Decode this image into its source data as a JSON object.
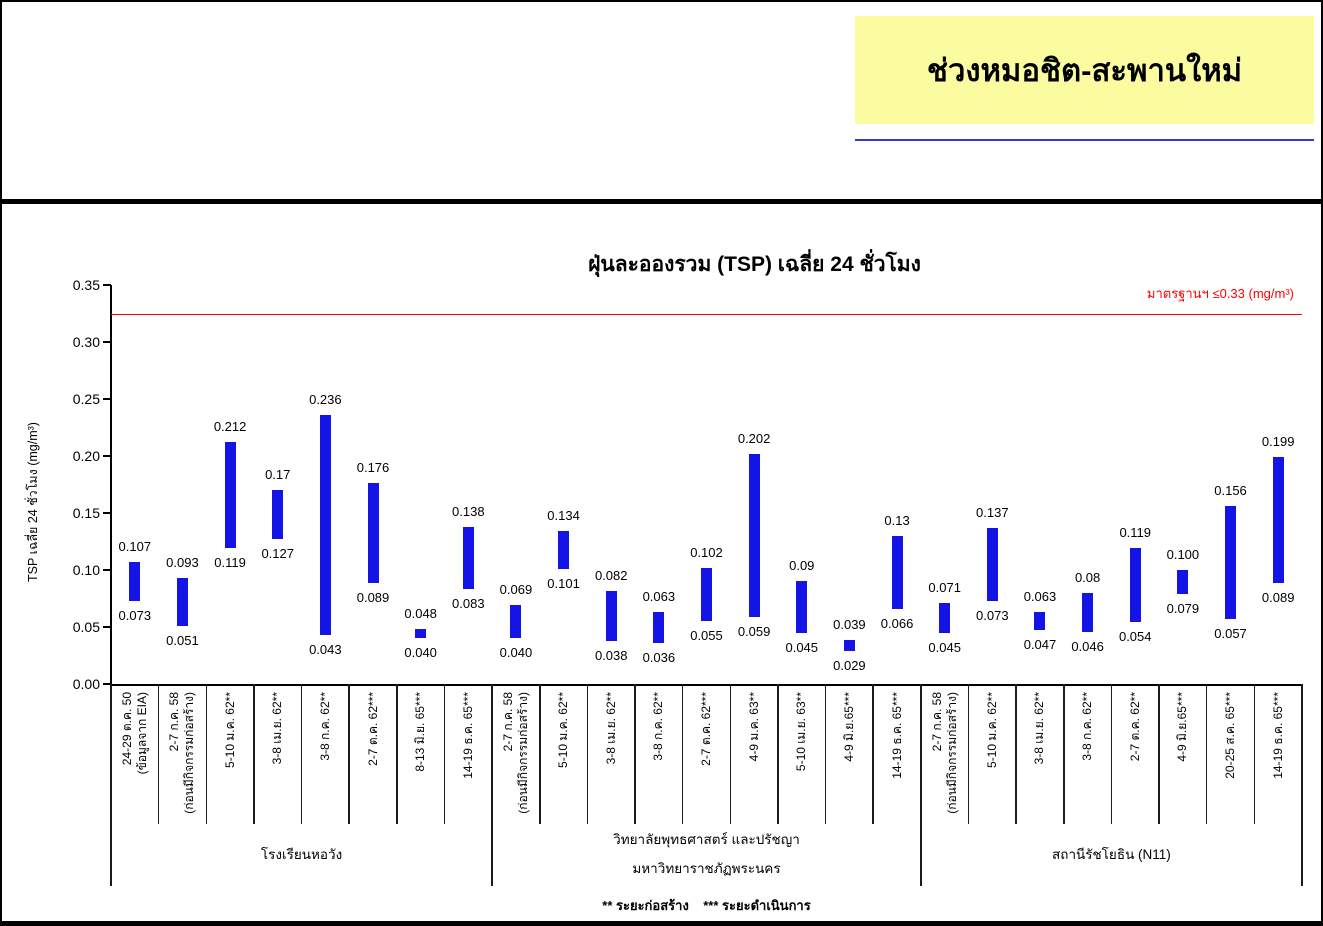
{
  "header": {
    "section_title": "ช่วงหมอชิต-สะพานใหม่"
  },
  "chart_data": {
    "type": "bar",
    "subtype": "floating_range_bars",
    "title": "ฝุ่นละอองรวม (TSP) เฉลี่ย 24 ชั่วโมง",
    "ylabel": "TSP เฉลี่ย 24 ชั่วโมง (mg/m³)",
    "unit": "mg/m³",
    "ylim": [
      0,
      0.35
    ],
    "yticks": [
      "0.00",
      "0.05",
      "0.10",
      "0.15",
      "0.20",
      "0.25",
      "0.30",
      "0.35"
    ],
    "grid": false,
    "legend": "none",
    "bar_color": "#1414E6",
    "standard_line": {
      "value": 0.325,
      "label": "มาตรฐานฯ ≤0.33 (mg/m³)",
      "color": "#FF0000"
    },
    "footnote": "** ระยะก่อสร้าง    *** ระยะดำเนินการ",
    "groups": [
      {
        "name_lines": [
          "โรงเรียนหอวัง"
        ],
        "points": [
          {
            "category_lines": [
              "24-29 ต.ค. 50",
              "(ข้อมูลจาก EIA)"
            ],
            "min": 0.073,
            "max": 0.107,
            "min_label": "0.073",
            "max_label": "0.107"
          },
          {
            "category_lines": [
              "2-7 ก.ค. 58",
              "(ก่อนมีกิจกรรมก่อสร้าง)"
            ],
            "min": 0.051,
            "max": 0.093,
            "min_label": "0.051",
            "max_label": "0.093"
          },
          {
            "category_lines": [
              "5-10 ม.ค. 62**"
            ],
            "min": 0.119,
            "max": 0.212,
            "min_label": "0.119",
            "max_label": "0.212"
          },
          {
            "category_lines": [
              "3-8 เม.ย. 62**"
            ],
            "min": 0.127,
            "max": 0.17,
            "min_label": "0.127",
            "max_label": "0.17"
          },
          {
            "category_lines": [
              "3-8 ก.ค. 62**"
            ],
            "min": 0.043,
            "max": 0.236,
            "min_label": "0.043",
            "max_label": "0.236"
          },
          {
            "category_lines": [
              "2-7 ต.ค. 62***"
            ],
            "min": 0.089,
            "max": 0.176,
            "min_label": "0.089",
            "max_label": "0.176"
          },
          {
            "category_lines": [
              "8-13 มิ.ย. 65***"
            ],
            "min": 0.04,
            "max": 0.048,
            "min_label": "0.040",
            "max_label": "0.048"
          },
          {
            "category_lines": [
              "14-19 ธ.ค. 65***"
            ],
            "min": 0.083,
            "max": 0.138,
            "min_label": "0.083",
            "max_label": "0.138"
          }
        ]
      },
      {
        "name_lines": [
          "วิทยาลัยพุทธศาสตร์ และปรัชญา",
          "มหาวิทยาราชภัฏพระนคร"
        ],
        "points": [
          {
            "category_lines": [
              "2-7 ก.ค. 58",
              "(ก่อนมีกิจกรรมก่อสร้าง)"
            ],
            "min": 0.04,
            "max": 0.069,
            "min_label": "0.040",
            "max_label": "0.069"
          },
          {
            "category_lines": [
              "5-10 ม.ค. 62**"
            ],
            "min": 0.101,
            "max": 0.134,
            "min_label": "0.101",
            "max_label": "0.134"
          },
          {
            "category_lines": [
              "3-8 เม.ย. 62**"
            ],
            "min": 0.038,
            "max": 0.082,
            "min_label": "0.038",
            "max_label": "0.082"
          },
          {
            "category_lines": [
              "3-8 ก.ค. 62**"
            ],
            "min": 0.036,
            "max": 0.063,
            "min_label": "0.036",
            "max_label": "0.063"
          },
          {
            "category_lines": [
              "2-7 ต.ค. 62***"
            ],
            "min": 0.055,
            "max": 0.102,
            "min_label": "0.055",
            "max_label": "0.102"
          },
          {
            "category_lines": [
              "4-9 ม.ค. 63**"
            ],
            "min": 0.059,
            "max": 0.202,
            "min_label": "0.059",
            "max_label": "0.202"
          },
          {
            "category_lines": [
              "5-10 เม.ย. 63**"
            ],
            "min": 0.045,
            "max": 0.09,
            "min_label": "0.045",
            "max_label": "0.09"
          },
          {
            "category_lines": [
              "4-9 มิ.ย.65***"
            ],
            "min": 0.029,
            "max": 0.039,
            "min_label": "0.029",
            "max_label": "0.039"
          },
          {
            "category_lines": [
              "14-19 ธ.ค. 65***"
            ],
            "min": 0.066,
            "max": 0.13,
            "min_label": "0.066",
            "max_label": "0.13"
          }
        ]
      },
      {
        "name_lines": [
          "สถานีรัชโยธิน (N11)"
        ],
        "points": [
          {
            "category_lines": [
              "2-7 ก.ค. 58",
              "(ก่อนมีกิจกรรมก่อสร้าง)"
            ],
            "min": 0.045,
            "max": 0.071,
            "min_label": "0.045",
            "max_label": "0.071"
          },
          {
            "category_lines": [
              "5-10 ม.ค. 62**"
            ],
            "min": 0.073,
            "max": 0.137,
            "min_label": "0.073",
            "max_label": "0.137"
          },
          {
            "category_lines": [
              "3-8 เม.ย. 62**"
            ],
            "min": 0.047,
            "max": 0.063,
            "min_label": "0.047",
            "max_label": "0.063"
          },
          {
            "category_lines": [
              "3-8 ก.ค. 62**"
            ],
            "min": 0.046,
            "max": 0.08,
            "min_label": "0.046",
            "max_label": "0.08"
          },
          {
            "category_lines": [
              "2-7 ต.ค. 62**"
            ],
            "min": 0.054,
            "max": 0.119,
            "min_label": "0.054",
            "max_label": "0.119"
          },
          {
            "category_lines": [
              "4-9 มิ.ย.65***"
            ],
            "min": 0.079,
            "max": 0.1,
            "min_label": "0.079",
            "max_label": "0.100"
          },
          {
            "category_lines": [
              "20-25 ส.ค. 65***"
            ],
            "min": 0.057,
            "max": 0.156,
            "min_label": "0.057",
            "max_label": "0.156"
          },
          {
            "category_lines": [
              "14-19 ธ.ค. 65***"
            ],
            "min": 0.089,
            "max": 0.199,
            "min_label": "0.089",
            "max_label": "0.199"
          }
        ]
      }
    ]
  }
}
